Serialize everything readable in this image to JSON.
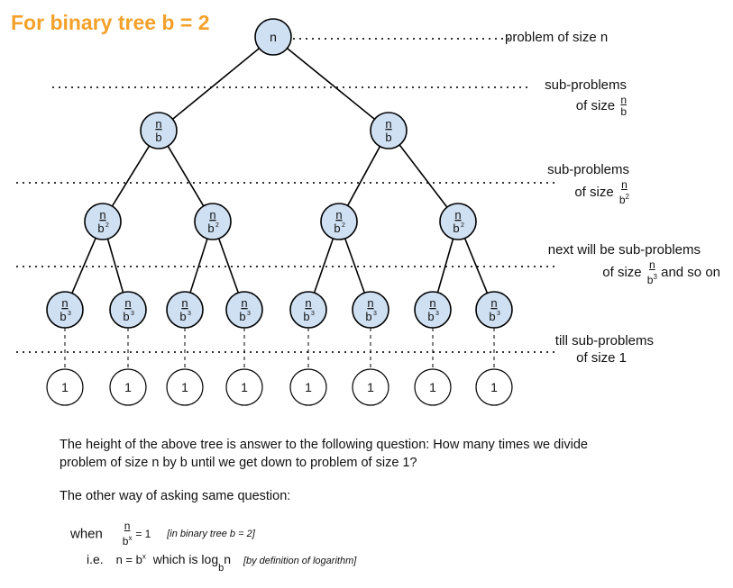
{
  "title": "For binary tree b = 2",
  "root_label": "n",
  "level1": {
    "num": "n",
    "den": "b"
  },
  "level2": {
    "num": "n",
    "den": "b",
    "exp": "2"
  },
  "level3": {
    "num": "n",
    "den": "b",
    "exp": "3"
  },
  "leaf_label": "1",
  "labels": {
    "l0": "problem of size n",
    "l1_line1": "sub-problems",
    "l1_line2": "of size",
    "l2_line1": "sub-problems",
    "l2_line2": "of size",
    "l3_line1": "next will be sub-problems",
    "l3_line2a": "of size",
    "l3_line2b": "and so on",
    "l4_line1": "till sub-problems",
    "l4_line2": "of size 1"
  },
  "paragraph1": "The height of the above tree is answer to the following question: How many times we divide problem of size n by b until we get down to problem of size 1?",
  "paragraph2": "The other way of asking same question:",
  "eq1": {
    "when": "when",
    "num": "n",
    "den": "b",
    "exp": "x",
    "rhs": "= 1",
    "note": "[in binary tree b = 2]"
  },
  "eq2": {
    "ie": "i.e.",
    "lhs": "n = b",
    "exp": "x",
    "which": "which is log",
    "sub": "b",
    "arg": "n",
    "note": "[by definition of logarithm]"
  },
  "colors": {
    "node_fill": "#cfe0f3",
    "title": "#f3a12a",
    "edge": "#000000"
  }
}
